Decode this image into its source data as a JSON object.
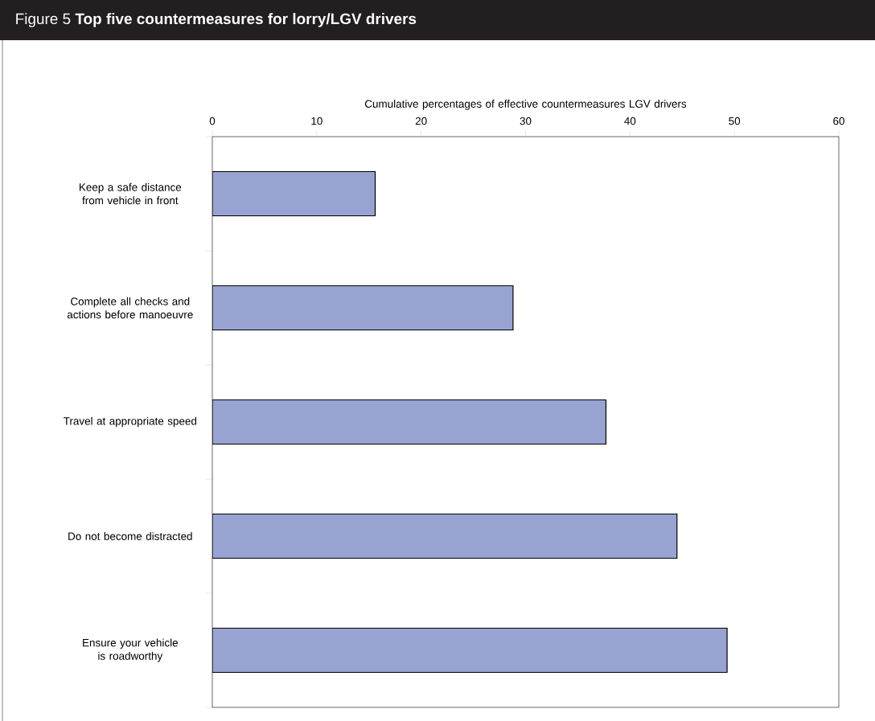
{
  "chart_data": {
    "type": "bar",
    "orientation": "horizontal",
    "title": "Figure 5  **Top five countermeasures for lorry/LGV drivers**",
    "xlabel": "Cumulative percentages of effective countermeasures LGV drivers",
    "categories": [
      "Keep a safe distance from vehicle in front",
      "Complete all checks and actions before manoeuvre",
      "Travel at appropriate speed",
      "Do not become distracted",
      "Ensure your vehicle is roadworthy"
    ],
    "values": [
      15.6,
      28.8,
      37.7,
      44.5,
      49.3
    ],
    "color": "#99a3d1",
    "xlim": [
      0,
      60
    ],
    "xticks": [
      0,
      10,
      20,
      30,
      40,
      50,
      60
    ]
  }
}
